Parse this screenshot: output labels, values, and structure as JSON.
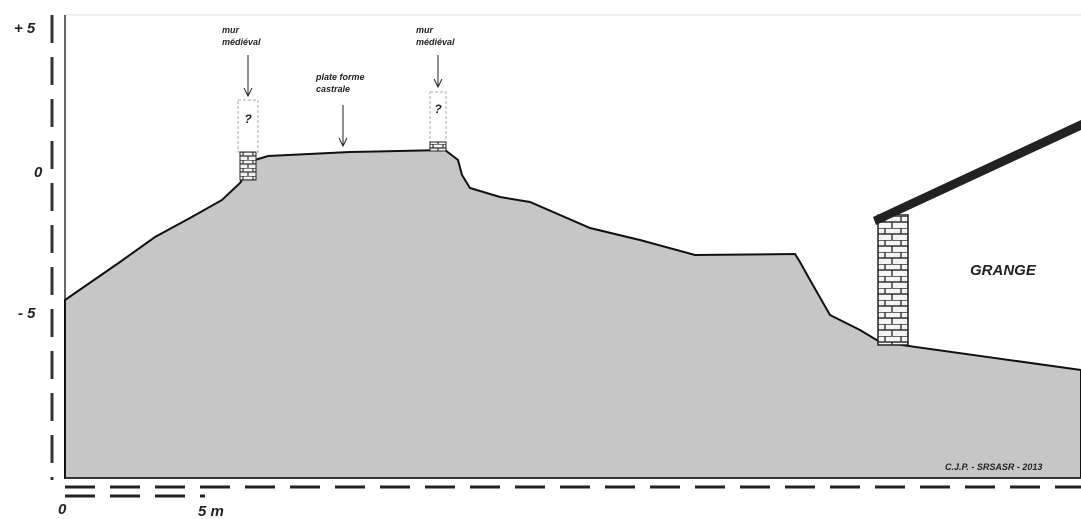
{
  "axis": {
    "labels": [
      "+ 5",
      "0",
      "- 5"
    ]
  },
  "annotations": [
    {
      "lines": [
        "mur",
        "médiéval"
      ]
    },
    {
      "lines": [
        "plate forme",
        "castrale"
      ]
    },
    {
      "lines": [
        "mur",
        "médiéval"
      ]
    }
  ],
  "walls": [
    {
      "mark": "?"
    },
    {
      "mark": "?"
    }
  ],
  "building": "GRANGE",
  "credit": "C.J.P. - SRSASR - 2013",
  "scale": {
    "start": "0",
    "end": "5 m"
  }
}
